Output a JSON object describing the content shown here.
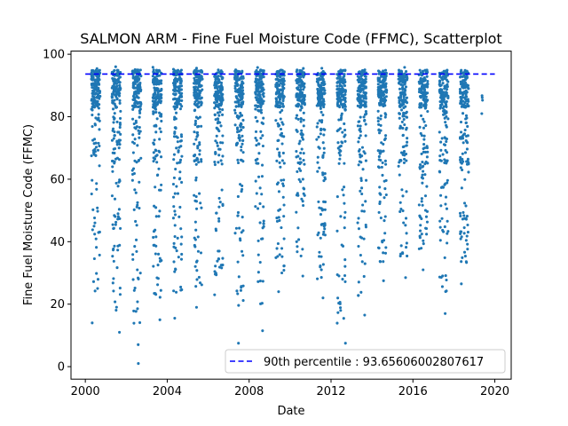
{
  "chart_data": {
    "type": "scatter",
    "title": "SALMON ARM - Fine Fuel Moisture Code (FFMC), Scatterplot",
    "xlabel": "Date",
    "ylabel": "Fine Fuel Moisture Code (FFMC)",
    "xlim": [
      1999.3,
      2020.8
    ],
    "ylim": [
      -4,
      101
    ],
    "xticks": [
      {
        "value": 2000,
        "label": "2000"
      },
      {
        "value": 2004,
        "label": "2004"
      },
      {
        "value": 2008,
        "label": "2008"
      },
      {
        "value": 2012,
        "label": "2012"
      },
      {
        "value": 2016,
        "label": "2016"
      },
      {
        "value": 2020,
        "label": "2020"
      }
    ],
    "yticks": [
      {
        "value": 0,
        "label": "0"
      },
      {
        "value": 20,
        "label": "20"
      },
      {
        "value": 40,
        "label": "40"
      },
      {
        "value": 60,
        "label": "60"
      },
      {
        "value": 80,
        "label": "80"
      },
      {
        "value": 100,
        "label": "100"
      }
    ],
    "grid": false,
    "legend": {
      "position": "lower-right",
      "entries": [
        {
          "label": "90th percentile : 93.65606002807617",
          "style": "dashed",
          "color": "#0000ff"
        }
      ]
    },
    "reference_line": {
      "name": "90th percentile",
      "value": 93.65606002807617,
      "x_range": [
        2000.0,
        2020.0
      ],
      "color": "#0000ff"
    },
    "point_color": "#1f77b4",
    "seasons": [
      {
        "year": 2000,
        "start": 2000.3,
        "end": 2000.72,
        "min": 14.0
      },
      {
        "year": 2001,
        "start": 2001.3,
        "end": 2001.72,
        "min": 11.0
      },
      {
        "year": 2002,
        "start": 2002.3,
        "end": 2002.72,
        "min": 1.0
      },
      {
        "year": 2003,
        "start": 2003.3,
        "end": 2003.72,
        "min": 15.0
      },
      {
        "year": 2004,
        "start": 2004.3,
        "end": 2004.72,
        "min": 15.5
      },
      {
        "year": 2005,
        "start": 2005.3,
        "end": 2005.72,
        "min": 19.0
      },
      {
        "year": 2006,
        "start": 2006.3,
        "end": 2006.72,
        "min": 23.0
      },
      {
        "year": 2007,
        "start": 2007.3,
        "end": 2007.72,
        "min": 7.5
      },
      {
        "year": 2008,
        "start": 2008.3,
        "end": 2008.72,
        "min": 11.5
      },
      {
        "year": 2009,
        "start": 2009.3,
        "end": 2009.72,
        "min": 24.0
      },
      {
        "year": 2010,
        "start": 2010.3,
        "end": 2010.72,
        "min": 29.0
      },
      {
        "year": 2011,
        "start": 2011.3,
        "end": 2011.72,
        "min": 22.0
      },
      {
        "year": 2012,
        "start": 2012.3,
        "end": 2012.72,
        "min": 7.5
      },
      {
        "year": 2013,
        "start": 2013.3,
        "end": 2013.72,
        "min": 16.5
      },
      {
        "year": 2014,
        "start": 2014.3,
        "end": 2014.72,
        "min": 27.5
      },
      {
        "year": 2015,
        "start": 2015.3,
        "end": 2015.72,
        "min": 28.5
      },
      {
        "year": 2016,
        "start": 2016.3,
        "end": 2016.72,
        "min": 31.0
      },
      {
        "year": 2017,
        "start": 2017.3,
        "end": 2017.72,
        "min": 17.0
      },
      {
        "year": 2018,
        "start": 2018.3,
        "end": 2018.72,
        "min": 26.5
      },
      {
        "year": 2019,
        "start": 2019.3,
        "end": 2019.42,
        "min": 81.0
      }
    ]
  }
}
